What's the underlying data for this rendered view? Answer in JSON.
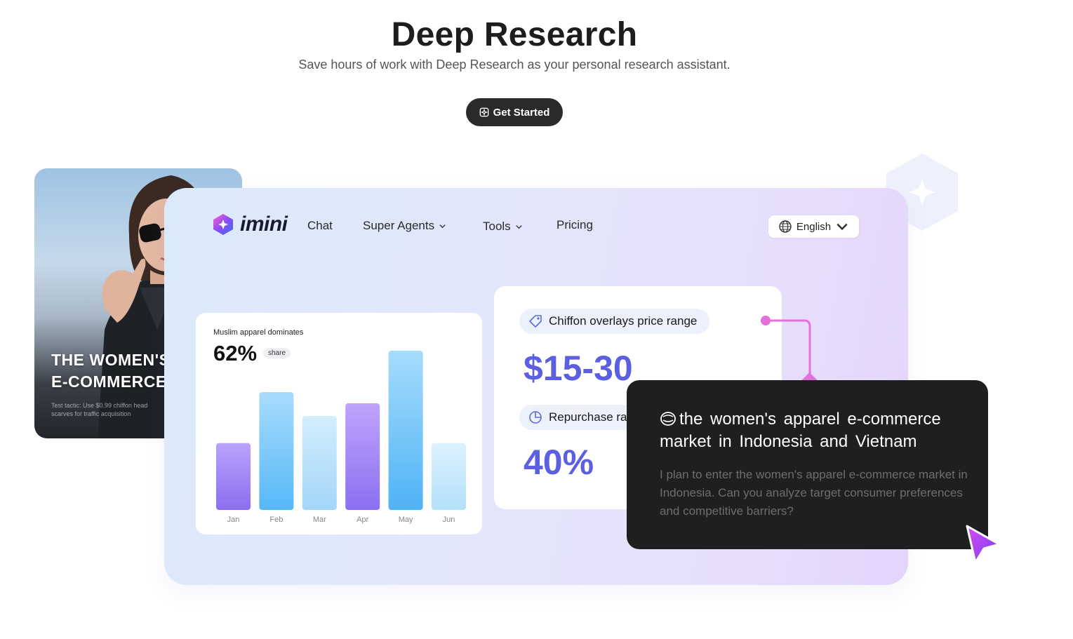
{
  "hero": {
    "title": "Deep Research",
    "subtitle": "Save hours of work with Deep Research as your personal research assistant.",
    "cta_label": "Get Started"
  },
  "photo_card": {
    "heading": "THE WOMEN'S\nE-COMMERCE",
    "caption": "Test tactic: Use $0.99 chiffon head scarves for traffic acquisition"
  },
  "app": {
    "logo": "imini",
    "nav": [
      {
        "label": "Chat",
        "dropdown": false
      },
      {
        "label": "Super Agents",
        "dropdown": true
      },
      {
        "label": "Tools",
        "dropdown": true
      },
      {
        "label": "Pricing",
        "dropdown": false
      }
    ],
    "language": "English"
  },
  "chart_card": {
    "title": "Muslim apparel dominates",
    "big_value": "62%",
    "pill": "share"
  },
  "chart_data": {
    "type": "bar",
    "categories": [
      "Jan",
      "Feb",
      "Mar",
      "Apr",
      "May",
      "Jun"
    ],
    "values": [
      42,
      74,
      59,
      67,
      100,
      42
    ],
    "colors": [
      [
        "#b9a3fb",
        "#8b6ef0"
      ],
      [
        "#a9dcfc",
        "#56b8f7"
      ],
      [
        "#d3eefd",
        "#a3d6f9"
      ],
      [
        "#c1a4fb",
        "#8a6ff1"
      ],
      [
        "#a6dcfc",
        "#4fb3f6"
      ],
      [
        "#dcf2fe",
        "#b4e1fb"
      ]
    ]
  },
  "price_card": {
    "tag1": "Chiffon overlays price range",
    "value1": "$15-30",
    "tag2": "Repurchase ra",
    "value2": "40%"
  },
  "popup": {
    "title": "the women's apparel e-commerce market in Indonesia and Vietnam",
    "body": "I plan to enter the women's apparel e-commerce market in Indonesia. Can you analyze target consumer preferences and competitive barriers?"
  }
}
